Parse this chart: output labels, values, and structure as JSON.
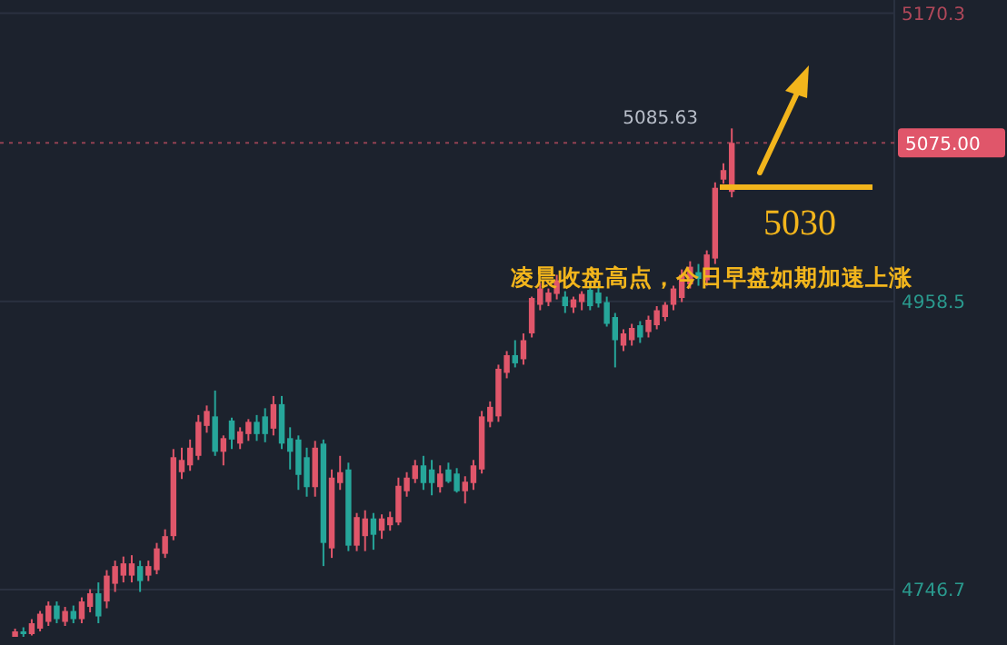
{
  "chart_data": {
    "type": "candlestick",
    "categories": [
      null,
      null,
      null,
      null,
      null,
      null,
      null,
      null,
      null,
      null,
      null,
      null,
      null,
      null,
      null,
      null,
      null,
      null,
      null,
      null,
      null,
      null,
      null,
      null,
      null,
      null,
      null,
      null,
      null,
      null,
      null,
      null,
      null,
      null,
      null,
      null,
      null,
      null,
      null,
      null,
      null,
      null,
      null,
      null,
      null,
      null,
      null,
      null,
      null,
      null,
      null,
      null,
      null,
      null,
      null,
      null,
      null,
      null,
      null,
      null,
      null,
      null,
      null,
      null,
      null,
      null,
      null,
      null,
      null,
      null,
      null,
      null,
      null,
      null,
      null,
      null,
      null,
      null,
      null,
      null,
      null,
      null,
      null,
      null,
      null,
      null,
      null,
      null,
      null,
      null,
      null,
      null,
      null,
      null,
      null,
      null,
      null,
      null,
      null,
      null,
      null,
      null,
      null,
      null,
      null,
      null
    ],
    "ohlc": [
      [
        4712,
        4718,
        4712,
        4716
      ],
      [
        4716,
        4719,
        4712,
        4714
      ],
      [
        4714,
        4725,
        4713,
        4722
      ],
      [
        4718,
        4731,
        4716,
        4729
      ],
      [
        4723,
        4738,
        4720,
        4735
      ],
      [
        4735,
        4738,
        4722,
        4725
      ],
      [
        4723,
        4734,
        4720,
        4731
      ],
      [
        4731,
        4735,
        4722,
        4725
      ],
      [
        4725,
        4741,
        4722,
        4738
      ],
      [
        4734,
        4747,
        4730,
        4744
      ],
      [
        4744,
        4752,
        4722,
        4727
      ],
      [
        4738,
        4761,
        4733,
        4757
      ],
      [
        4751,
        4768,
        4745,
        4764
      ],
      [
        4757,
        4771,
        4752,
        4766
      ],
      [
        4757,
        4772,
        4752,
        4766
      ],
      [
        4764,
        4768,
        4745,
        4753
      ],
      [
        4757,
        4768,
        4753,
        4764
      ],
      [
        4761,
        4781,
        4758,
        4777
      ],
      [
        4773,
        4791,
        4770,
        4786
      ],
      [
        4786,
        4850,
        4783,
        4844
      ],
      [
        4833,
        4851,
        4828,
        4842
      ],
      [
        4838,
        4857,
        4834,
        4851
      ],
      [
        4845,
        4875,
        4842,
        4870
      ],
      [
        4867,
        4882,
        4862,
        4878
      ],
      [
        4874,
        4893,
        4845,
        4848
      ],
      [
        4848,
        4860,
        4838,
        4858
      ],
      [
        4871,
        4873,
        4850,
        4857
      ],
      [
        4854,
        4866,
        4850,
        4863
      ],
      [
        4861,
        4872,
        4856,
        4870
      ],
      [
        4870,
        4875,
        4856,
        4861
      ],
      [
        4874,
        4880,
        4855,
        4861
      ],
      [
        4865,
        4889,
        4860,
        4883
      ],
      [
        4883,
        4889,
        4850,
        4854
      ],
      [
        4858,
        4866,
        4835,
        4848
      ],
      [
        4857,
        4860,
        4820,
        4831
      ],
      [
        4844,
        4851,
        4815,
        4822
      ],
      [
        4822,
        4856,
        4815,
        4851
      ],
      [
        4854,
        4857,
        4764,
        4781
      ],
      [
        4777,
        4835,
        4770,
        4829
      ],
      [
        4825,
        4845,
        4820,
        4833
      ],
      [
        4835,
        4840,
        4775,
        4779
      ],
      [
        4779,
        4803,
        4775,
        4800
      ],
      [
        4786,
        4805,
        4775,
        4799
      ],
      [
        4799,
        4803,
        4776,
        4787
      ],
      [
        4790,
        4802,
        4784,
        4799
      ],
      [
        4794,
        4804,
        4790,
        4800
      ],
      [
        4796,
        4829,
        4794,
        4823
      ],
      [
        4819,
        4833,
        4815,
        4829
      ],
      [
        4828,
        4842,
        4825,
        4838
      ],
      [
        4838,
        4845,
        4820,
        4825
      ],
      [
        4835,
        4842,
        4816,
        4825
      ],
      [
        4822,
        4838,
        4818,
        4832
      ],
      [
        4835,
        4840,
        4825,
        4826
      ],
      [
        4832,
        4836,
        4818,
        4819
      ],
      [
        4819,
        4830,
        4810,
        4826
      ],
      [
        4825,
        4842,
        4820,
        4838
      ],
      [
        4835,
        4878,
        4832,
        4874
      ],
      [
        4870,
        4885,
        4866,
        4881
      ],
      [
        4874,
        4912,
        4870,
        4909
      ],
      [
        4906,
        4922,
        4902,
        4919
      ],
      [
        4919,
        4930,
        4910,
        4913
      ],
      [
        4916,
        4935,
        4912,
        4930
      ],
      [
        4935,
        4962,
        4932,
        4961
      ],
      [
        4956,
        4972,
        4952,
        4968
      ],
      [
        4958,
        4968,
        4955,
        4965
      ],
      [
        4964,
        4978,
        4960,
        4974
      ],
      [
        4962,
        4966,
        4950,
        4955
      ],
      [
        4954,
        4962,
        4950,
        4960
      ],
      [
        4958,
        4966,
        4952,
        4964
      ],
      [
        4967,
        4971,
        4952,
        4955
      ],
      [
        4965,
        4970,
        4954,
        4957
      ],
      [
        4958,
        4962,
        4940,
        4942
      ],
      [
        4947,
        4950,
        4910,
        4930
      ],
      [
        4926,
        4938,
        4922,
        4935
      ],
      [
        4930,
        4942,
        4926,
        4939
      ],
      [
        4941,
        4944,
        4928,
        4932
      ],
      [
        4936,
        4948,
        4932,
        4945
      ],
      [
        4941,
        4955,
        4938,
        4952
      ],
      [
        4947,
        4958,
        4944,
        4956
      ],
      [
        4956,
        4970,
        4952,
        4968
      ],
      [
        4961,
        4982,
        4958,
        4978
      ],
      [
        4971,
        4988,
        4968,
        4984
      ],
      [
        4980,
        4986,
        4970,
        4975
      ],
      [
        4974,
        4996,
        4970,
        4993
      ],
      [
        4990,
        5046,
        4986,
        5042
      ],
      [
        5048,
        5060,
        5045,
        5055
      ],
      [
        5039,
        5085.63,
        5035,
        5075
      ],
      null,
      null,
      null,
      null,
      null,
      null,
      null,
      null,
      null,
      null,
      null,
      null,
      null,
      null,
      null,
      null,
      null,
      null,
      null
    ],
    "colors": [
      "#e0566a",
      "#26a69a",
      "#e0566a",
      "#e0566a",
      "#e0566a",
      "#26a69a",
      "#e0566a",
      "#26a69a",
      "#e0566a",
      "#e0566a",
      "#26a69a",
      "#e0566a",
      "#e0566a",
      "#e0566a",
      "#e0566a",
      "#26a69a",
      "#e0566a",
      "#e0566a",
      "#e0566a",
      "#e0566a",
      "#e0566a",
      "#e0566a",
      "#e0566a",
      "#e0566a",
      "#26a69a",
      "#e0566a",
      "#26a69a",
      "#e0566a",
      "#e0566a",
      "#26a69a",
      "#26a69a",
      "#e0566a",
      "#26a69a",
      "#26a69a",
      "#26a69a",
      "#26a69a",
      "#e0566a",
      "#26a69a",
      "#e0566a",
      "#e0566a",
      "#26a69a",
      "#e0566a",
      "#e0566a",
      "#26a69a",
      "#e0566a",
      "#e0566a",
      "#e0566a",
      "#e0566a",
      "#e0566a",
      "#26a69a",
      "#26a69a",
      "#e0566a",
      "#26a69a",
      "#26a69a",
      "#e0566a",
      "#e0566a",
      "#e0566a",
      "#e0566a",
      "#e0566a",
      "#e0566a",
      "#26a69a",
      "#e0566a",
      "#e0566a",
      "#e0566a",
      "#e0566a",
      "#e0566a",
      "#26a69a",
      "#e0566a",
      "#e0566a",
      "#26a69a",
      "#26a69a",
      "#26a69a",
      "#26a69a",
      "#e0566a",
      "#e0566a",
      "#26a69a",
      "#e0566a",
      "#e0566a",
      "#e0566a",
      "#e0566a",
      "#e0566a",
      "#e0566a",
      "#26a69a",
      "#e0566a",
      "#e0566a",
      "#e0566a",
      "#e0566a",
      null,
      null,
      null,
      null,
      null,
      null,
      null,
      null,
      null,
      null,
      null,
      null,
      null,
      null,
      null,
      null,
      null,
      null,
      null
    ],
    "ylim": [
      4706,
      5180
    ],
    "yticks": [
      4746.7,
      4958.5,
      5170.3
    ],
    "tick_labels": "y",
    "grid": "y",
    "ref_lines": [
      {
        "axis": "y",
        "value": 5075,
        "label": "5075.00",
        "color": "#e0566a",
        "line_style": "dotted"
      }
    ],
    "annotations": [
      "5085.63",
      "5030",
      "凌晨收盘高点，今日早盘如期加速上涨"
    ]
  }
}
